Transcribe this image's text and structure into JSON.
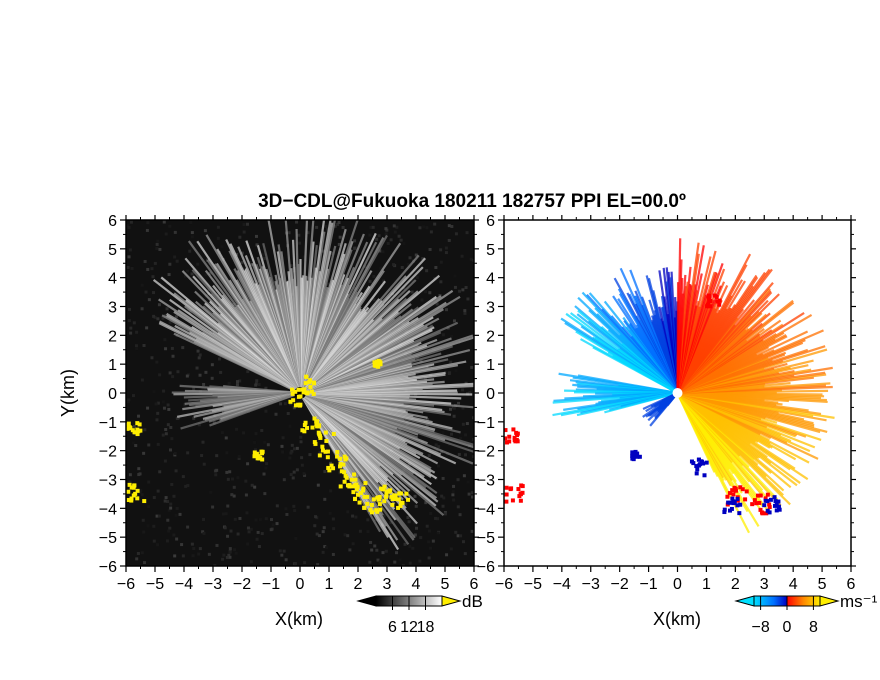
{
  "title": "3D−CDL@Fukuoka 180211 182757 PPI EL=00.0º",
  "chart_data": [
    {
      "type": "heatmap",
      "name": "backscatter-intensity-ppi",
      "xlabel": "X(km)",
      "ylabel": "Y(km)",
      "xlim": [
        -6,
        6
      ],
      "ylim": [
        -6,
        6
      ],
      "x_ticks": [
        -6,
        -5,
        -4,
        -3,
        -2,
        -1,
        0,
        1,
        2,
        3,
        4,
        5,
        6
      ],
      "y_ticks": [
        -6,
        -5,
        -4,
        -3,
        -2,
        -1,
        0,
        1,
        2,
        3,
        4,
        5,
        6
      ],
      "colorbar": {
        "label": "dB",
        "ticks": [
          6,
          12,
          18
        ],
        "range": [
          0,
          24
        ],
        "colors": [
          "#000000",
          "#ffffff"
        ]
      },
      "background_color": "#111111",
      "highlight_color": "#ffee00"
    },
    {
      "type": "heatmap",
      "name": "doppler-velocity-ppi",
      "xlabel": "X(km)",
      "ylabel": "",
      "xlim": [
        -6,
        6
      ],
      "ylim": [
        -6,
        6
      ],
      "x_ticks": [
        -6,
        -5,
        -4,
        -3,
        -2,
        -1,
        0,
        1,
        2,
        3,
        4,
        5,
        6
      ],
      "y_ticks": [
        -6,
        -5,
        -4,
        -3,
        -2,
        -1,
        0,
        1,
        2,
        3,
        4,
        5,
        6
      ],
      "colorbar": {
        "label": "ms⁻¹",
        "ticks": [
          -8,
          0,
          8
        ],
        "range": [
          -10,
          10
        ],
        "colors": [
          "#00e0ff",
          "#0060ff",
          "#0000c0",
          "#ff0000",
          "#ff8800",
          "#ffee00"
        ]
      },
      "background_color": "#ffffff"
    }
  ]
}
